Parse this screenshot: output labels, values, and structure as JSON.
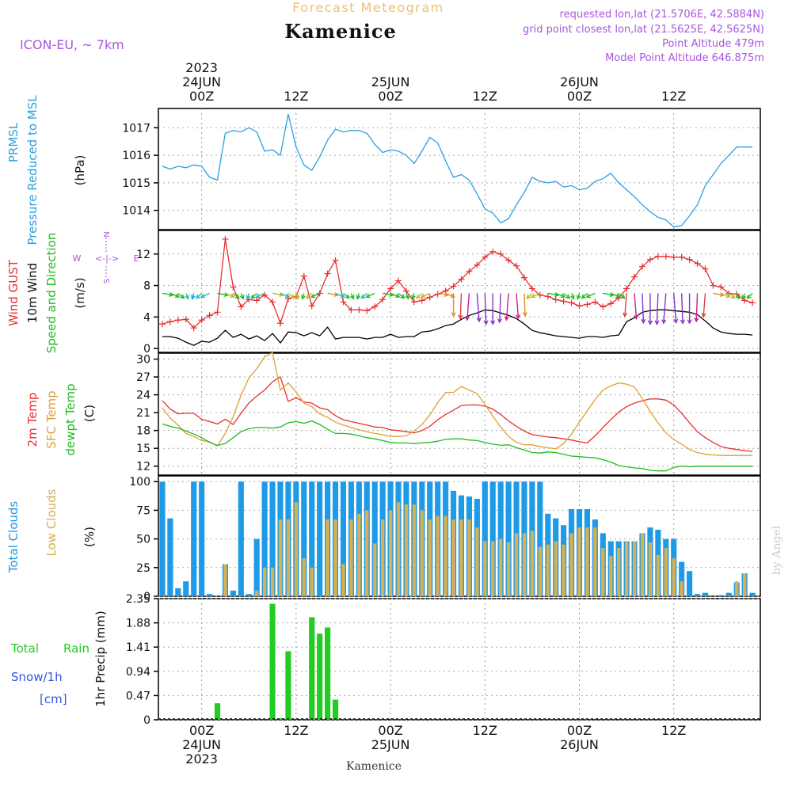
{
  "header": {
    "forecast_title": "Forecast Meteogram",
    "location": "Kamenice",
    "model": "ICON-EU, ~ 7km",
    "requested": "requested lon,lat (21.5706E, 42.5884N)",
    "gridpoint": "grid point closest lon,lat (21.5625E, 42.5625N)",
    "point_alt": "Point Altitude 479m",
    "model_alt": "Model Point Altitude 646.875m",
    "footer_location": "Kamenice",
    "watermark": "by Angel"
  },
  "time_axis": {
    "top_labels": [
      {
        "hour": 0,
        "lines": [
          "2023",
          "24JUN",
          "00Z"
        ]
      },
      {
        "hour": 12,
        "lines": [
          "12Z"
        ]
      },
      {
        "hour": 24,
        "lines": [
          "25JUN",
          "00Z"
        ]
      },
      {
        "hour": 36,
        "lines": [
          "12Z"
        ]
      },
      {
        "hour": 48,
        "lines": [
          "26JUN",
          "00Z"
        ]
      },
      {
        "hour": 60,
        "lines": [
          "12Z"
        ]
      }
    ],
    "bottom_labels": [
      {
        "hour": 0,
        "lines": [
          "00Z",
          "24JUN",
          "2023"
        ]
      },
      {
        "hour": 12,
        "lines": [
          "12Z"
        ]
      },
      {
        "hour": 24,
        "lines": [
          "00Z",
          "25JUN"
        ]
      },
      {
        "hour": 36,
        "lines": [
          "12Z"
        ]
      },
      {
        "hour": 48,
        "lines": [
          "00Z",
          "26JUN"
        ]
      },
      {
        "hour": 60,
        "lines": [
          "12Z"
        ]
      }
    ],
    "range_hours": [
      -5.5,
      71
    ]
  },
  "panel_labels": {
    "pressure": [
      "PRMSL",
      "Pressure Reduced to MSL"
    ],
    "pressure_unit": "(hPa)",
    "wind": [
      "Wind GUST",
      "10m Wind",
      "Speed and Direction"
    ],
    "wind_unit": "(m/s)",
    "compass": {
      "n": "N",
      "s": "S",
      "e": "E",
      "w": "W",
      "arrow": "<-|->"
    },
    "temp": [
      "2m Temp",
      "SFC Temp",
      "dewpt Temp"
    ],
    "temp_unit": "(C)",
    "clouds": [
      "Total Clouds",
      "Low Clouds"
    ],
    "clouds_unit": "(%)",
    "precip": [
      "Total",
      "Rain",
      "Snow/1h",
      "[cm]"
    ],
    "precip_unit": "1hr Precip (mm)"
  },
  "colors": {
    "pressure": "#2aa0e0",
    "gust": "#e83030",
    "wind": "#000000",
    "dir": "#22bb22",
    "temp2m": "#e83030",
    "sfc": "#e0a030",
    "dewpt": "#22bb22",
    "total_cloud": "#1e9be8",
    "low_cloud": "#d8b050",
    "rain": "#22cc22",
    "snow": "#3355dd",
    "label_purple": "#aa55dd",
    "forecast_title": "#f0c070"
  },
  "chart_data": [
    {
      "type": "line",
      "id": "pressure",
      "ylabel": "(hPa)",
      "yticks": [
        1014,
        1015,
        1016,
        1017
      ],
      "ylim": [
        1013.3,
        1017.7
      ],
      "x": [
        -5,
        -4,
        -3,
        -2,
        -1,
        0,
        1,
        2,
        3,
        4,
        5,
        6,
        7,
        8,
        9,
        10,
        11,
        12,
        13,
        14,
        15,
        16,
        17,
        18,
        19,
        20,
        21,
        22,
        23,
        24,
        25,
        26,
        27,
        28,
        29,
        30,
        31,
        32,
        33,
        34,
        35,
        36,
        37,
        38,
        39,
        40,
        41,
        42,
        43,
        44,
        45,
        46,
        47,
        48,
        49,
        50,
        51,
        52,
        53,
        54,
        55,
        56,
        57,
        58,
        59,
        60,
        61,
        62,
        63,
        64,
        65,
        66,
        67,
        68,
        69,
        70
      ],
      "series": [
        {
          "values": [
            1015.6,
            1015.5,
            1015.6,
            1015.55,
            1015.65,
            1015.6,
            1015.2,
            1015.1,
            1016.8,
            1016.9,
            1016.85,
            1017.0,
            1016.85,
            1016.15,
            1016.2,
            1016.0,
            1017.5,
            1016.3,
            1015.65,
            1015.45,
            1015.95,
            1016.55,
            1016.95,
            1016.85,
            1016.9,
            1016.9,
            1016.8,
            1016.4,
            1016.1,
            1016.2,
            1016.15,
            1016.0,
            1015.7,
            1016.15,
            1016.65,
            1016.45,
            1015.8,
            1015.2,
            1015.3,
            1015.1,
            1014.6,
            1014.05,
            1013.9,
            1013.55,
            1013.7,
            1014.2,
            1014.65,
            1015.2,
            1015.05,
            1015.0,
            1015.05,
            1014.85,
            1014.9,
            1014.75,
            1014.8,
            1015.05,
            1015.15,
            1015.35,
            1015.0,
            1014.75,
            1014.5,
            1014.2,
            1013.95,
            1013.75,
            1013.65,
            1013.4,
            1013.45,
            1013.8,
            1014.2,
            1014.9,
            1015.3,
            1015.7,
            1016.0,
            1016.3,
            1016.3,
            1016.3
          ]
        }
      ]
    },
    {
      "type": "line",
      "id": "wind",
      "ylabel": "(m/s)",
      "yticks": [
        0,
        4,
        8,
        12
      ],
      "ylim": [
        -0.5,
        15
      ],
      "x": [
        -5,
        -4,
        -3,
        -2,
        -1,
        0,
        1,
        2,
        3,
        4,
        5,
        6,
        7,
        8,
        9,
        10,
        11,
        12,
        13,
        14,
        15,
        16,
        17,
        18,
        19,
        20,
        21,
        22,
        23,
        24,
        25,
        26,
        27,
        28,
        29,
        30,
        31,
        32,
        33,
        34,
        35,
        36,
        37,
        38,
        39,
        40,
        41,
        42,
        43,
        44,
        45,
        46,
        47,
        48,
        49,
        50,
        51,
        52,
        53,
        54,
        55,
        56,
        57,
        58,
        59,
        60,
        61,
        62,
        63,
        64,
        65,
        66,
        67,
        68,
        69,
        70
      ],
      "series": [
        {
          "values": [
            3.1,
            3.4,
            3.6,
            3.7,
            2.6,
            3.6,
            4.2,
            4.6,
            13.9,
            7.8,
            5.3,
            6.2,
            6.1,
            6.8,
            5.9,
            3.2,
            6.3,
            6.6,
            9.2,
            5.4,
            7.0,
            9.5,
            11.2,
            5.9,
            4.9,
            4.9,
            4.8,
            5.3,
            6.2,
            7.6,
            8.6,
            7.3,
            5.9,
            6.1,
            6.5,
            6.9,
            7.3,
            7.9,
            8.8,
            9.8,
            10.6,
            11.6,
            12.3,
            12.0,
            11.2,
            10.5,
            9.0,
            7.6,
            6.8,
            6.6,
            6.2,
            6.0,
            5.8,
            5.4,
            5.6,
            5.9,
            5.3,
            5.7,
            6.4,
            7.6,
            9.1,
            10.4,
            11.3,
            11.7,
            11.7,
            11.6,
            11.6,
            11.3,
            10.8,
            10.1,
            8.0,
            7.8,
            7.0,
            6.9,
            6.1,
            5.8
          ]
        },
        {
          "values": [
            1.5,
            1.5,
            1.3,
            0.8,
            0.4,
            0.9,
            0.8,
            1.3,
            2.3,
            1.4,
            1.8,
            1.2,
            1.6,
            1.0,
            1.9,
            0.7,
            2.1,
            2.0,
            1.6,
            2.0,
            1.6,
            2.7,
            1.2,
            1.4,
            1.4,
            1.4,
            1.2,
            1.4,
            1.4,
            1.8,
            1.4,
            1.5,
            1.5,
            2.1,
            2.2,
            2.5,
            2.9,
            3.1,
            3.7,
            4.2,
            4.5,
            4.9,
            4.8,
            4.5,
            4.2,
            3.8,
            3.1,
            2.3,
            2.0,
            1.8,
            1.6,
            1.5,
            1.4,
            1.3,
            1.5,
            1.5,
            1.4,
            1.6,
            1.7,
            3.4,
            3.9,
            4.6,
            4.8,
            4.9,
            4.9,
            4.8,
            4.7,
            4.6,
            4.3,
            3.5,
            2.6,
            2.1,
            1.9,
            1.8,
            1.8,
            1.7
          ]
        }
      ]
    },
    {
      "type": "line",
      "id": "temperature",
      "ylabel": "(C)",
      "yticks": [
        12,
        15,
        18,
        21,
        24,
        27,
        30
      ],
      "ylim": [
        10.5,
        31
      ],
      "x": [
        -5,
        -4,
        -3,
        -2,
        -1,
        0,
        1,
        2,
        3,
        4,
        5,
        6,
        7,
        8,
        9,
        10,
        11,
        12,
        13,
        14,
        15,
        16,
        17,
        18,
        19,
        20,
        21,
        22,
        23,
        24,
        25,
        26,
        27,
        28,
        29,
        30,
        31,
        32,
        33,
        34,
        35,
        36,
        37,
        38,
        39,
        40,
        41,
        42,
        43,
        44,
        45,
        46,
        47,
        48,
        49,
        50,
        51,
        52,
        53,
        54,
        55,
        56,
        57,
        58,
        59,
        60,
        61,
        62,
        63,
        64,
        65,
        66,
        67,
        68,
        69,
        70
      ],
      "series": [
        {
          "values": [
            23.0,
            21.6,
            20.8,
            20.9,
            20.9,
            19.9,
            19.5,
            19.1,
            19.9,
            19.0,
            20.9,
            22.6,
            23.8,
            24.8,
            26.2,
            27.0,
            22.9,
            23.5,
            22.8,
            22.6,
            21.8,
            21.5,
            20.5,
            19.8,
            19.5,
            19.2,
            18.9,
            18.6,
            18.5,
            18.1,
            18.0,
            17.8,
            17.6,
            18.0,
            18.7,
            19.8,
            20.7,
            21.4,
            22.2,
            22.3,
            22.3,
            22.1,
            21.6,
            20.7,
            19.6,
            18.7,
            17.9,
            17.3,
            17.1,
            16.9,
            16.8,
            16.6,
            16.4,
            16.1,
            15.9,
            17.1,
            18.5,
            19.8,
            21.1,
            22.0,
            22.6,
            23.0,
            23.3,
            23.3,
            23.1,
            22.3,
            20.9,
            19.3,
            17.8,
            16.8,
            16.0,
            15.3,
            15.0,
            14.8,
            14.6,
            14.5
          ]
        },
        {
          "values": [
            21.8,
            20.1,
            18.9,
            17.5,
            17.0,
            16.3,
            16.1,
            15.4,
            17.5,
            20.3,
            23.9,
            26.8,
            28.4,
            30.4,
            31.1,
            24.8,
            26.0,
            24.5,
            22.6,
            22.0,
            20.8,
            20.2,
            19.4,
            18.9,
            18.5,
            18.1,
            17.8,
            17.5,
            17.3,
            17.0,
            17.0,
            17.1,
            17.9,
            19.0,
            20.6,
            22.7,
            24.4,
            24.4,
            25.4,
            24.8,
            24.2,
            22.4,
            20.4,
            18.6,
            17.0,
            16.0,
            15.6,
            15.6,
            15.3,
            15.1,
            14.9,
            15.8,
            17.4,
            19.4,
            21.3,
            23.2,
            24.8,
            25.5,
            26.0,
            25.8,
            25.3,
            23.4,
            21.2,
            19.3,
            17.6,
            16.5,
            15.7,
            14.8,
            14.3,
            14.0,
            13.9,
            13.8,
            13.8,
            13.8,
            13.8,
            13.8
          ]
        },
        {
          "values": [
            19.1,
            18.7,
            18.4,
            17.9,
            17.4,
            16.8,
            16.0,
            15.5,
            15.8,
            16.8,
            17.8,
            18.3,
            18.5,
            18.5,
            18.4,
            18.6,
            19.3,
            19.5,
            19.2,
            19.6,
            19.0,
            18.2,
            17.5,
            17.5,
            17.4,
            17.1,
            16.8,
            16.6,
            16.3,
            16.0,
            15.9,
            15.9,
            15.8,
            15.9,
            16.0,
            16.2,
            16.5,
            16.6,
            16.6,
            16.4,
            16.3,
            16.0,
            15.7,
            15.5,
            15.6,
            15.1,
            14.7,
            14.3,
            14.2,
            14.4,
            14.3,
            14.0,
            13.7,
            13.6,
            13.5,
            13.4,
            13.1,
            12.7,
            12.1,
            11.9,
            11.7,
            11.6,
            11.3,
            11.2,
            11.2,
            11.8,
            12.0,
            11.9,
            12.0,
            12.0,
            12.0,
            12.0,
            12.0,
            12.0,
            12.0,
            12.0
          ]
        }
      ]
    },
    {
      "type": "bar",
      "id": "clouds",
      "ylabel": "(%)",
      "yticks": [
        0,
        25,
        50,
        75,
        100
      ],
      "ylim": [
        0,
        105
      ],
      "x": [
        -5,
        -4,
        -3,
        -2,
        -1,
        0,
        1,
        2,
        3,
        4,
        5,
        6,
        7,
        8,
        9,
        10,
        11,
        12,
        13,
        14,
        15,
        16,
        17,
        18,
        19,
        20,
        21,
        22,
        23,
        24,
        25,
        26,
        27,
        28,
        29,
        30,
        31,
        32,
        33,
        34,
        35,
        36,
        37,
        38,
        39,
        40,
        41,
        42,
        43,
        44,
        45,
        46,
        47,
        48,
        49,
        50,
        51,
        52,
        53,
        54,
        55,
        56,
        57,
        58,
        59,
        60,
        61,
        62,
        63,
        64,
        65,
        66,
        67,
        68,
        69,
        70
      ],
      "series": [
        {
          "values": [
            100,
            68,
            7,
            13,
            100,
            100,
            2,
            0,
            28,
            5,
            100,
            2,
            50,
            100,
            100,
            100,
            100,
            100,
            100,
            100,
            100,
            100,
            100,
            100,
            100,
            100,
            100,
            100,
            100,
            100,
            100,
            100,
            100,
            100,
            100,
            100,
            100,
            92,
            88,
            87,
            85,
            100,
            100,
            100,
            100,
            100,
            100,
            100,
            100,
            72,
            68,
            62,
            76,
            76,
            76,
            67,
            55,
            48,
            48,
            48,
            48,
            55,
            60,
            58,
            50,
            50,
            30,
            22,
            2,
            3,
            0,
            1,
            3,
            12,
            20,
            3
          ]
        },
        {
          "values": [
            0,
            0,
            0,
            0,
            0,
            0,
            0,
            0,
            28,
            0,
            0,
            0,
            5,
            25,
            25,
            67,
            67,
            82,
            33,
            25,
            0,
            67,
            67,
            28,
            67,
            72,
            75,
            46,
            67,
            75,
            82,
            80,
            80,
            75,
            67,
            70,
            70,
            67,
            67,
            67,
            60,
            48,
            48,
            50,
            47,
            55,
            55,
            57,
            43,
            45,
            48,
            45,
            55,
            60,
            60,
            60,
            42,
            35,
            42,
            48,
            48,
            55,
            47,
            36,
            42,
            33,
            13,
            0,
            0,
            0,
            0,
            0,
            0,
            13,
            20,
            0
          ]
        }
      ]
    },
    {
      "type": "bar",
      "id": "precip",
      "ylabel": "1hr Precip (mm)",
      "yticks": [
        0,
        0.47,
        0.94,
        1.41,
        1.88,
        2.35
      ],
      "ylim": [
        0,
        2.35
      ],
      "x": [
        2,
        9,
        10,
        11,
        14,
        15,
        16,
        17
      ],
      "series": [
        {
          "values": [
            0.32,
            2.25,
            0.03,
            1.33,
            1.99,
            1.67,
            1.79,
            0.39
          ]
        }
      ]
    }
  ]
}
